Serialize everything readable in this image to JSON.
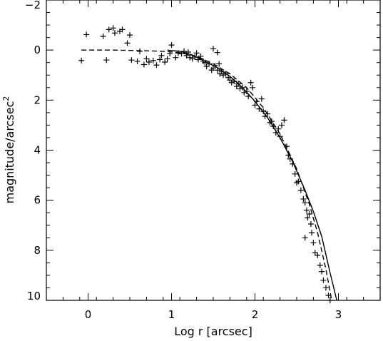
{
  "chart_data": {
    "type": "scatter",
    "title": "",
    "xlabel": "Log r [arcsec]",
    "ylabel_main": "magnitude/arcsec",
    "ylabel_sup": "2",
    "xlim": [
      -0.5,
      3.5
    ],
    "ylim": [
      10,
      -2
    ],
    "y_inverted": true,
    "grid": false,
    "legend": "none",
    "x_ticks": [
      0,
      1,
      2,
      3
    ],
    "x_tick_labels": [
      "0",
      "1",
      "2",
      "3"
    ],
    "y_ticks": [
      -2,
      0,
      2,
      4,
      6,
      8,
      10
    ],
    "y_tick_labels": [
      "−2",
      "0",
      "2",
      "4",
      "6",
      "8",
      "10"
    ],
    "series": [
      {
        "style": "plus-markers",
        "points": [
          [
            -0.08,
            0.42
          ],
          [
            -0.02,
            -0.62
          ],
          [
            0.22,
            0.4
          ],
          [
            0.18,
            -0.55
          ],
          [
            0.25,
            -0.82
          ],
          [
            0.3,
            -0.88
          ],
          [
            0.32,
            -0.68
          ],
          [
            0.38,
            -0.75
          ],
          [
            0.41,
            -0.82
          ],
          [
            0.5,
            -0.6
          ],
          [
            0.47,
            -0.28
          ],
          [
            0.52,
            0.4
          ],
          [
            0.59,
            0.45
          ],
          [
            0.62,
            0.05
          ],
          [
            0.67,
            0.58
          ],
          [
            0.7,
            0.35
          ],
          [
            0.73,
            0.48
          ],
          [
            0.78,
            0.42
          ],
          [
            0.82,
            0.6
          ],
          [
            0.86,
            0.38
          ],
          [
            0.88,
            0.22
          ],
          [
            0.92,
            0.48
          ],
          [
            0.95,
            0.35
          ],
          [
            1.0,
            -0.2
          ],
          [
            0.98,
            0.14
          ],
          [
            1.05,
            0.3
          ],
          [
            1.08,
            0.12
          ],
          [
            1.12,
            0.15
          ],
          [
            1.15,
            0.05
          ],
          [
            1.18,
            0.22
          ],
          [
            1.2,
            0.08
          ],
          [
            1.22,
            0.3
          ],
          [
            1.25,
            0.35
          ],
          [
            1.28,
            0.28
          ],
          [
            1.3,
            0.12
          ],
          [
            1.32,
            0.38
          ],
          [
            1.35,
            0.25
          ],
          [
            1.38,
            0.45
          ],
          [
            1.4,
            0.5
          ],
          [
            1.42,
            0.65
          ],
          [
            1.45,
            0.55
          ],
          [
            1.48,
            0.8
          ],
          [
            1.5,
            0.72
          ],
          [
            1.52,
            0.62
          ],
          [
            1.55,
            0.8
          ],
          [
            1.57,
            0.55
          ],
          [
            1.5,
            -0.05
          ],
          [
            1.55,
            0.1
          ],
          [
            1.58,
            0.95
          ],
          [
            1.6,
            0.85
          ],
          [
            1.62,
            1.0
          ],
          [
            1.65,
            0.95
          ],
          [
            1.68,
            1.1
          ],
          [
            1.7,
            1.2
          ],
          [
            1.72,
            1.3
          ],
          [
            1.75,
            1.25
          ],
          [
            1.78,
            1.45
          ],
          [
            1.8,
            1.35
          ],
          [
            1.82,
            1.55
          ],
          [
            1.85,
            1.5
          ],
          [
            1.87,
            1.7
          ],
          [
            1.9,
            1.65
          ],
          [
            1.92,
            1.85
          ],
          [
            1.95,
            1.3
          ],
          [
            1.97,
            1.5
          ],
          [
            2.0,
            2.2
          ],
          [
            2.02,
            2.05
          ],
          [
            2.05,
            2.35
          ],
          [
            2.08,
            1.95
          ],
          [
            2.1,
            2.45
          ],
          [
            2.12,
            2.65
          ],
          [
            2.15,
            2.55
          ],
          [
            2.18,
            2.9
          ],
          [
            2.2,
            2.85
          ],
          [
            2.22,
            3.05
          ],
          [
            2.25,
            3.3
          ],
          [
            2.28,
            3.15
          ],
          [
            2.3,
            3.45
          ],
          [
            2.32,
            3.0
          ],
          [
            2.35,
            2.8
          ],
          [
            2.38,
            3.85
          ],
          [
            2.4,
            4.2
          ],
          [
            2.42,
            4.35
          ],
          [
            2.45,
            4.55
          ],
          [
            2.48,
            4.95
          ],
          [
            2.5,
            5.3
          ],
          [
            2.52,
            5.25
          ],
          [
            2.55,
            5.6
          ],
          [
            2.58,
            5.95
          ],
          [
            2.6,
            6.1
          ],
          [
            2.62,
            6.4
          ],
          [
            2.63,
            6.7
          ],
          [
            2.65,
            6.55
          ],
          [
            2.67,
            6.95
          ],
          [
            2.68,
            7.3
          ],
          [
            2.7,
            7.7
          ],
          [
            2.72,
            8.1
          ],
          [
            2.75,
            8.2
          ],
          [
            2.78,
            8.6
          ],
          [
            2.8,
            8.85
          ],
          [
            2.82,
            9.2
          ],
          [
            2.85,
            9.5
          ],
          [
            2.88,
            9.8
          ],
          [
            2.9,
            10.0
          ],
          [
            2.6,
            7.5
          ]
        ]
      },
      {
        "style": "solid-line",
        "points": [
          [
            0.95,
            0.0
          ],
          [
            1.1,
            0.05
          ],
          [
            1.25,
            0.2
          ],
          [
            1.4,
            0.45
          ],
          [
            1.55,
            0.7
          ],
          [
            1.7,
            1.05
          ],
          [
            1.85,
            1.5
          ],
          [
            2.0,
            2.05
          ],
          [
            2.15,
            2.7
          ],
          [
            2.3,
            3.5
          ],
          [
            2.45,
            4.45
          ],
          [
            2.6,
            5.6
          ],
          [
            2.7,
            6.45
          ],
          [
            2.8,
            7.45
          ],
          [
            2.9,
            8.9
          ],
          [
            2.98,
            10.0
          ]
        ]
      },
      {
        "style": "dashed-line",
        "points": [
          [
            -0.08,
            0.0
          ],
          [
            0.3,
            0.0
          ],
          [
            0.6,
            0.02
          ],
          [
            0.9,
            0.05
          ],
          [
            1.1,
            0.1
          ],
          [
            1.3,
            0.25
          ],
          [
            1.5,
            0.55
          ],
          [
            1.7,
            0.95
          ],
          [
            1.9,
            1.5
          ],
          [
            2.1,
            2.3
          ],
          [
            2.3,
            3.35
          ],
          [
            2.5,
            4.75
          ],
          [
            2.65,
            6.15
          ],
          [
            2.75,
            7.3
          ],
          [
            2.85,
            8.75
          ],
          [
            2.92,
            10.0
          ]
        ]
      }
    ]
  }
}
